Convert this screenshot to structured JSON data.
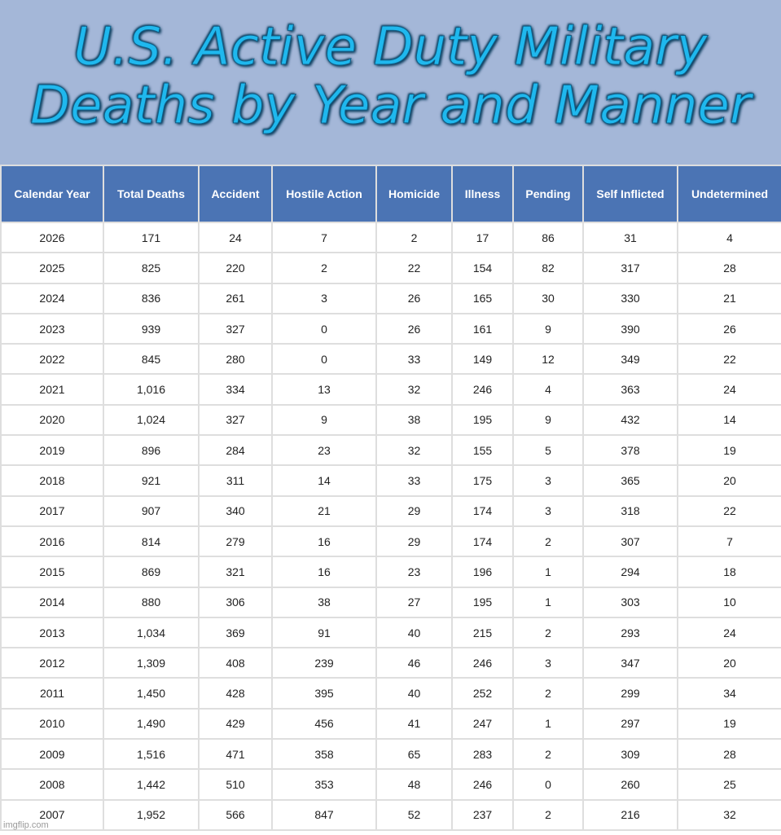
{
  "title": "U.S. Active Duty Military\nDeaths by Year and Manner",
  "watermark": "imgflip.com",
  "table": {
    "columns": [
      "Calendar Year",
      "Total Deaths",
      "Accident",
      "Hostile Action",
      "Homicide",
      "Illness",
      "Pending",
      "Self Inflicted",
      "Undetermined"
    ],
    "rows": [
      [
        "2026",
        "171",
        "24",
        "7",
        "2",
        "17",
        "86",
        "31",
        "4"
      ],
      [
        "2025",
        "825",
        "220",
        "2",
        "22",
        "154",
        "82",
        "317",
        "28"
      ],
      [
        "2024",
        "836",
        "261",
        "3",
        "26",
        "165",
        "30",
        "330",
        "21"
      ],
      [
        "2023",
        "939",
        "327",
        "0",
        "26",
        "161",
        "9",
        "390",
        "26"
      ],
      [
        "2022",
        "845",
        "280",
        "0",
        "33",
        "149",
        "12",
        "349",
        "22"
      ],
      [
        "2021",
        "1,016",
        "334",
        "13",
        "32",
        "246",
        "4",
        "363",
        "24"
      ],
      [
        "2020",
        "1,024",
        "327",
        "9",
        "38",
        "195",
        "9",
        "432",
        "14"
      ],
      [
        "2019",
        "896",
        "284",
        "23",
        "32",
        "155",
        "5",
        "378",
        "19"
      ],
      [
        "2018",
        "921",
        "311",
        "14",
        "33",
        "175",
        "3",
        "365",
        "20"
      ],
      [
        "2017",
        "907",
        "340",
        "21",
        "29",
        "174",
        "3",
        "318",
        "22"
      ],
      [
        "2016",
        "814",
        "279",
        "16",
        "29",
        "174",
        "2",
        "307",
        "7"
      ],
      [
        "2015",
        "869",
        "321",
        "16",
        "23",
        "196",
        "1",
        "294",
        "18"
      ],
      [
        "2014",
        "880",
        "306",
        "38",
        "27",
        "195",
        "1",
        "303",
        "10"
      ],
      [
        "2013",
        "1,034",
        "369",
        "91",
        "40",
        "215",
        "2",
        "293",
        "24"
      ],
      [
        "2012",
        "1,309",
        "408",
        "239",
        "46",
        "246",
        "3",
        "347",
        "20"
      ],
      [
        "2011",
        "1,450",
        "428",
        "395",
        "40",
        "252",
        "2",
        "299",
        "34"
      ],
      [
        "2010",
        "1,490",
        "429",
        "456",
        "41",
        "247",
        "1",
        "297",
        "19"
      ],
      [
        "2009",
        "1,516",
        "471",
        "358",
        "65",
        "283",
        "2",
        "309",
        "28"
      ],
      [
        "2008",
        "1,442",
        "510",
        "353",
        "48",
        "246",
        "0",
        "260",
        "25"
      ],
      [
        "2007",
        "1,952",
        "566",
        "847",
        "52",
        "237",
        "2",
        "216",
        "32"
      ]
    ]
  },
  "colors": {
    "header_band": "#a4b7d8",
    "title_text": "#1fb8ee",
    "table_header": "#4b74b4",
    "grid_line": "#dedede"
  }
}
